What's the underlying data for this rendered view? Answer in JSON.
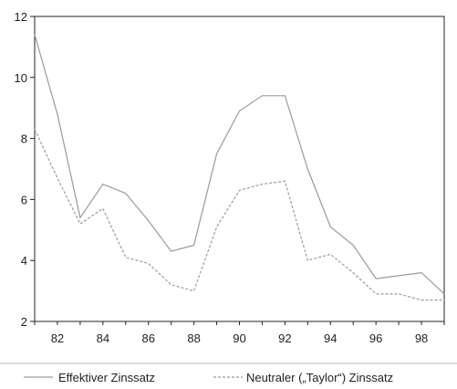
{
  "chart_data": {
    "type": "line",
    "title": "",
    "xlabel": "",
    "ylabel": "",
    "xlim": [
      1981,
      1999
    ],
    "ylim": [
      2,
      12
    ],
    "x_ticks": [
      82,
      84,
      86,
      88,
      90,
      92,
      94,
      96,
      98
    ],
    "y_ticks": [
      2,
      4,
      6,
      8,
      10,
      12
    ],
    "grid": false,
    "legend_position": "bottom",
    "series": [
      {
        "name": "Effektiver Zinssatz",
        "color": "#9a9a9a",
        "dash": "solid",
        "x": [
          1981,
          1982,
          1983,
          1984,
          1985,
          1986,
          1987,
          1988,
          1989,
          1990,
          1991,
          1992,
          1993,
          1994,
          1995,
          1996,
          1997,
          1998,
          1999
        ],
        "y": [
          11.4,
          8.8,
          5.4,
          6.5,
          6.2,
          5.3,
          4.3,
          4.5,
          7.5,
          8.9,
          9.4,
          9.4,
          7.0,
          5.1,
          4.5,
          3.4,
          3.5,
          3.6,
          2.9
        ]
      },
      {
        "name": "Neutraler („Taylor“) Zinssatz",
        "color": "#9a9a9a",
        "dash": "dashed",
        "x": [
          1981,
          1982,
          1983,
          1984,
          1985,
          1986,
          1987,
          1988,
          1989,
          1990,
          1991,
          1992,
          1993,
          1994,
          1995,
          1996,
          1997,
          1998,
          1999
        ],
        "y": [
          8.3,
          6.7,
          5.2,
          5.7,
          4.1,
          3.9,
          3.2,
          3.0,
          5.1,
          6.3,
          6.5,
          6.6,
          4.0,
          4.2,
          3.6,
          2.9,
          2.9,
          2.7,
          2.7
        ]
      }
    ]
  }
}
